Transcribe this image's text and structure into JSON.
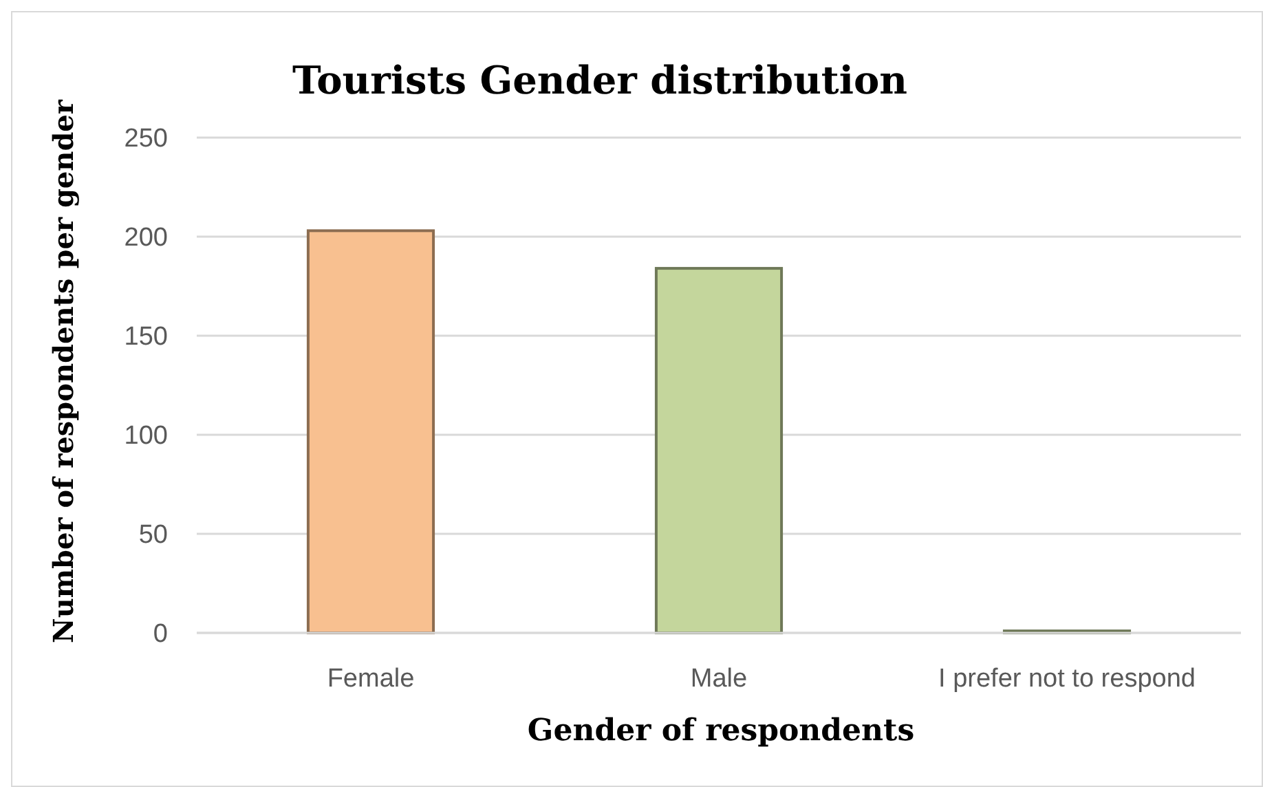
{
  "chart_data": {
    "type": "bar",
    "title": "Tourists Gender distribution",
    "xlabel": "Gender of respondents",
    "ylabel": "Number of respondents per gender",
    "categories": [
      "Female",
      "Male",
      "I prefer not to respond"
    ],
    "values": [
      203,
      184,
      1
    ],
    "colors": [
      "#f8c090",
      "#c4d69c",
      "#c4d69c"
    ],
    "ylim": [
      0,
      250
    ],
    "yticks": [
      0,
      50,
      100,
      150,
      200,
      250
    ],
    "grid": true
  }
}
